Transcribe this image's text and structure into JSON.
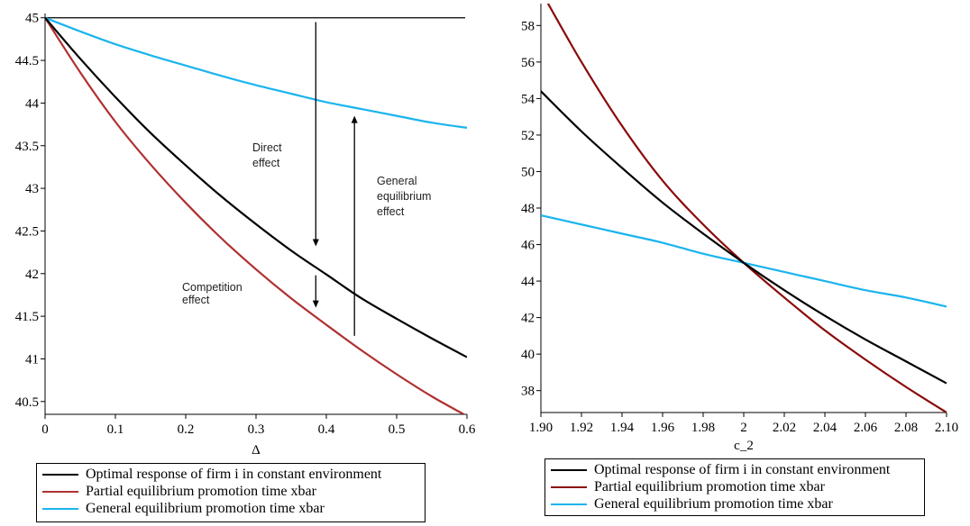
{
  "chart_data": [
    {
      "type": "line",
      "xlabel": "Δ",
      "ylabel": "",
      "xlim": [
        0,
        0.6
      ],
      "ylim": [
        40.35,
        45.05
      ],
      "x_ticks": [
        "0",
        "0.1",
        "0.2",
        "0.3",
        "0.4",
        "0.5",
        "0.6"
      ],
      "y_ticks": [
        "45",
        "44.5",
        "44",
        "43.5",
        "43",
        "42.5",
        "42",
        "41.5",
        "41",
        "40.5"
      ],
      "x_tick_values": [
        0,
        0.1,
        0.2,
        0.3,
        0.4,
        0.5,
        0.6
      ],
      "y_tick_values": [
        45,
        44.5,
        44,
        43.5,
        43,
        42.5,
        42,
        41.5,
        41,
        40.5
      ],
      "x": [
        0,
        0.05,
        0.1,
        0.15,
        0.2,
        0.25,
        0.3,
        0.35,
        0.4,
        0.45,
        0.5,
        0.55,
        0.6
      ],
      "series": [
        {
          "name": "Optimal response of firm i in constant environment",
          "color": "#000000",
          "values": [
            45.0,
            44.52,
            44.07,
            43.65,
            43.27,
            42.91,
            42.58,
            42.27,
            41.99,
            41.71,
            41.47,
            41.24,
            41.02
          ]
        },
        {
          "name": "Partial equilibrium promotion time xbar",
          "color": "#b03030",
          "values": [
            45.0,
            44.36,
            43.78,
            43.28,
            42.83,
            42.42,
            42.05,
            41.71,
            41.4,
            41.1,
            40.82,
            40.56,
            40.33
          ]
        },
        {
          "name": "General equilibrium promotion time xbar",
          "color": "#1ab4ee",
          "values": [
            45.0,
            44.84,
            44.69,
            44.56,
            44.44,
            44.32,
            44.21,
            44.11,
            44.01,
            43.93,
            43.85,
            43.77,
            43.71
          ]
        }
      ],
      "reference_line": 45.0,
      "annotations": [
        {
          "text": [
            "Direct",
            "effect"
          ],
          "arrow": {
            "x": 0.385,
            "y_from": 44.95,
            "y_to": 42.32
          }
        },
        {
          "text": [
            "General",
            "equilibrium",
            "effect"
          ],
          "arrow": {
            "x": 0.44,
            "y_from": 41.27,
            "y_to": 43.85
          }
        },
        {
          "text": [
            "Competition",
            "effect"
          ],
          "arrow": {
            "x": 0.385,
            "y_from": 41.98,
            "y_to": 41.6
          }
        }
      ],
      "legend_placement": "bottom",
      "grid": false
    },
    {
      "type": "line",
      "xlabel": "c_2",
      "ylabel": "",
      "xlim": [
        1.9,
        2.1
      ],
      "ylim": [
        36.8,
        59.2
      ],
      "x_ticks": [
        "1.90",
        "1.92",
        "1.94",
        "1.96",
        "1.98",
        "2",
        "2.02",
        "2.04",
        "2.06",
        "2.08",
        "2.10"
      ],
      "y_ticks": [
        "58",
        "56",
        "54",
        "52",
        "50",
        "48",
        "46",
        "44",
        "42",
        "40",
        "38"
      ],
      "x_tick_values": [
        1.9,
        1.92,
        1.94,
        1.96,
        1.98,
        2.0,
        2.02,
        2.04,
        2.06,
        2.08,
        2.1
      ],
      "y_tick_values": [
        58,
        56,
        54,
        52,
        50,
        48,
        46,
        44,
        42,
        40,
        38
      ],
      "x": [
        1.9,
        1.92,
        1.94,
        1.96,
        1.98,
        2.0,
        2.02,
        2.04,
        2.06,
        2.08,
        2.1
      ],
      "series": [
        {
          "name": "Optimal response of firm i in constant environment",
          "color": "#000000",
          "values": [
            54.4,
            52.2,
            50.2,
            48.3,
            46.6,
            45.0,
            43.5,
            42.1,
            40.8,
            39.6,
            38.4
          ]
        },
        {
          "name": "Partial equilibrium promotion time xbar",
          "color": "#8b0a0a",
          "values": [
            59.9,
            56.0,
            52.5,
            49.5,
            47.1,
            45.0,
            43.1,
            41.3,
            39.7,
            38.2,
            36.8
          ]
        },
        {
          "name": "General equilibrium promotion time xbar",
          "color": "#1ab4ee",
          "values": [
            47.6,
            47.1,
            46.6,
            46.1,
            45.5,
            45.0,
            44.5,
            44.0,
            43.5,
            43.1,
            42.6
          ]
        }
      ],
      "legend_placement": "bottom",
      "grid": false
    }
  ]
}
